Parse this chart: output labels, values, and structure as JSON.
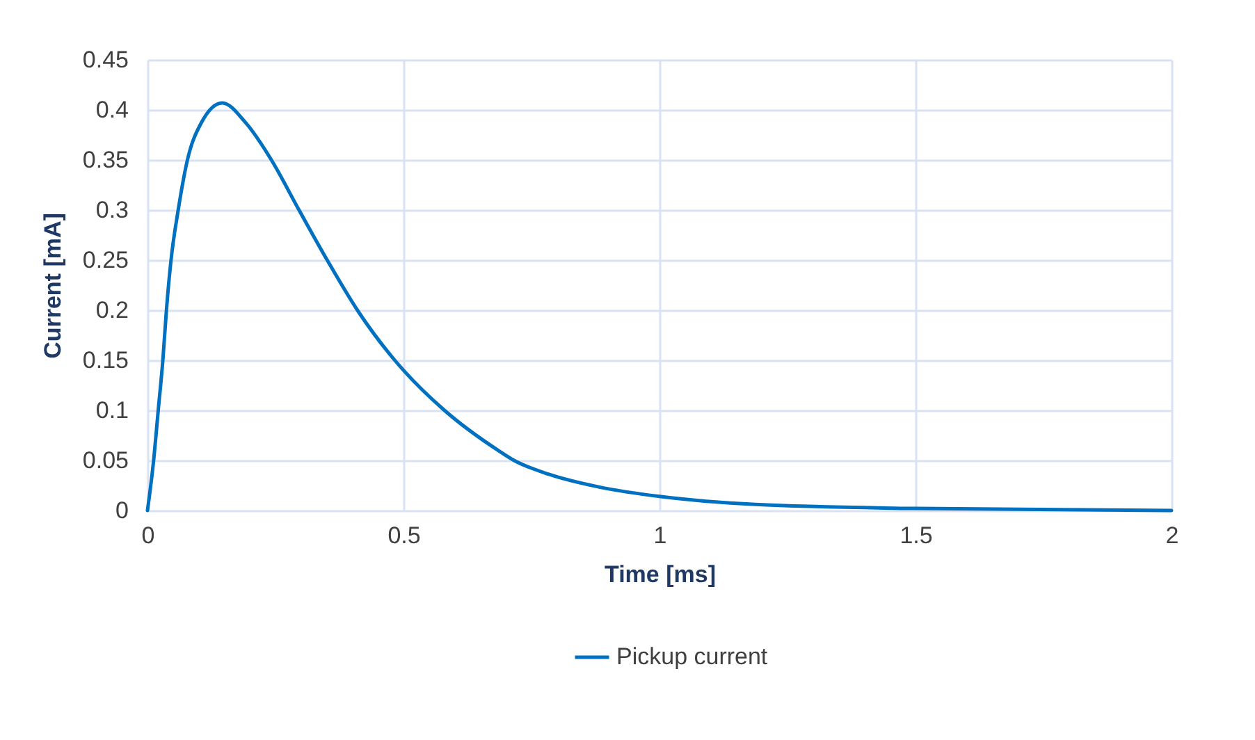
{
  "chart_data": {
    "type": "line",
    "xlabel": "Time [ms]",
    "ylabel": "Current [mA]",
    "xlim": [
      0,
      2
    ],
    "xticks": [
      0,
      0.5,
      1,
      1.5,
      2
    ],
    "ylim": [
      0,
      0.45
    ],
    "yticks": [
      0,
      0.05,
      0.1,
      0.15,
      0.2,
      0.25,
      0.3,
      0.35,
      0.4,
      0.45
    ],
    "grid": true,
    "legend": "bottom",
    "marker": "none",
    "line_style": "solid",
    "series": [
      {
        "name": "Pickup current",
        "color": "#0070c0",
        "x": [
          0,
          0.012,
          0.021,
          0.03,
          0.037,
          0.046,
          0.06,
          0.078,
          0.105,
          0.146,
          0.192,
          0.242,
          0.296,
          0.351,
          0.41,
          0.483,
          0.5,
          0.58,
          0.685,
          0.716,
          0.785,
          0.886,
          1.0,
          1.187,
          1.5,
          2.0
        ],
        "values": [
          0,
          0.05,
          0.1,
          0.15,
          0.2,
          0.25,
          0.3,
          0.35,
          0.387,
          0.407,
          0.387,
          0.35,
          0.3,
          0.25,
          0.2,
          0.15,
          0.14,
          0.1,
          0.06,
          0.05,
          0.036,
          0.023,
          0.014,
          0.006,
          0.002,
          0
        ]
      }
    ]
  }
}
